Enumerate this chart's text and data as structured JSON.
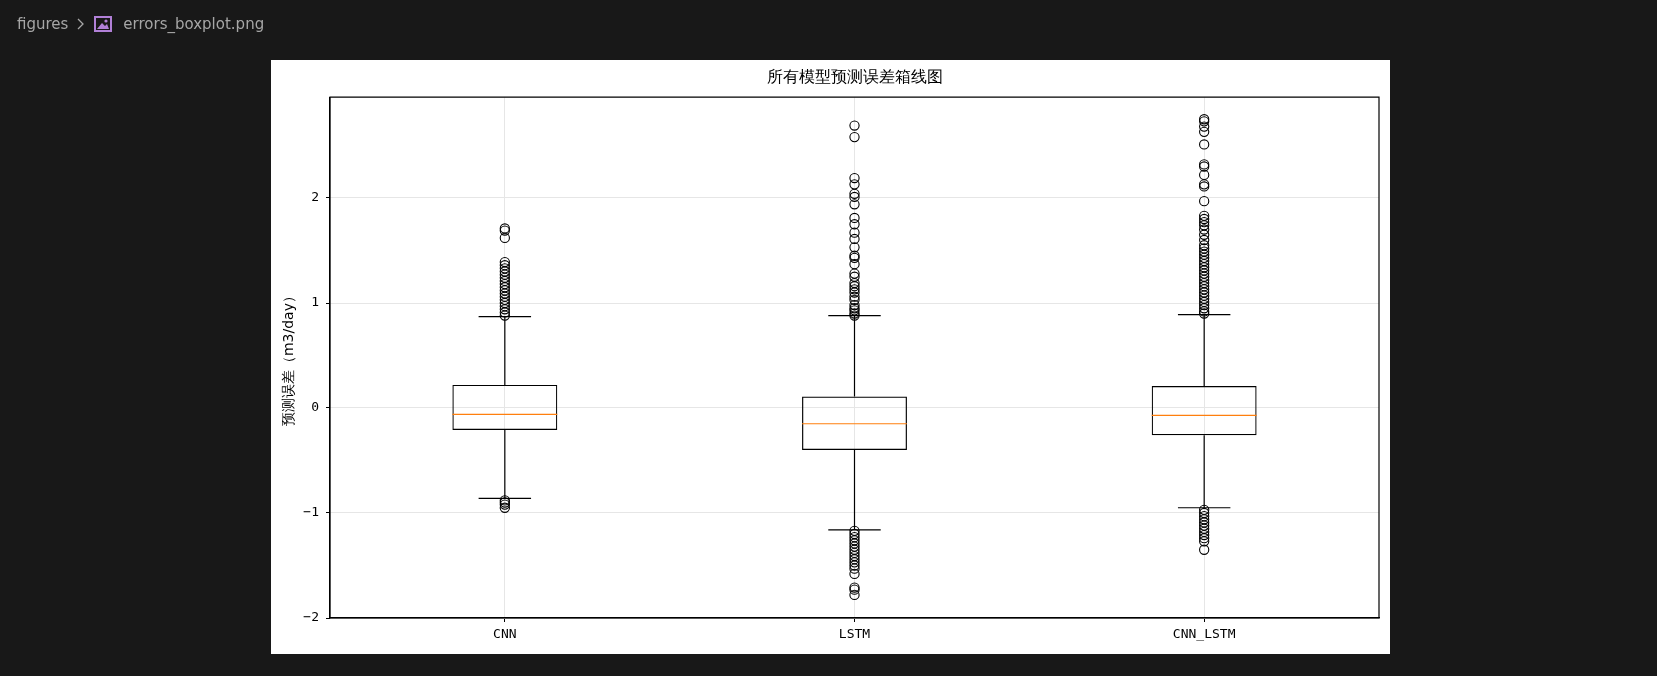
{
  "chart_data": {
    "type": "box",
    "title": "所有模型预测误差箱线图",
    "ylabel": "预测误差（m3/day）",
    "annotations": [
      "figures",
      "errors_boxplot.png"
    ],
    "categories": [
      "CNN",
      "LSTM",
      "CNN_LSTM"
    ],
    "color": "#000000",
    "boxes": [
      {
        "low": -0.86,
        "q1": -0.21,
        "median": -0.06,
        "q3": 0.22,
        "high": 0.87,
        "outliers": [
          1.71,
          1.69,
          1.62,
          1.39,
          1.36,
          1.33,
          1.3,
          1.27,
          1.24,
          1.21,
          1.18,
          1.15,
          1.12,
          1.09,
          1.06,
          1.03,
          1.0,
          0.97,
          0.94,
          0.91,
          0.88,
          -0.88,
          -0.9,
          -0.92,
          -0.95
        ]
      },
      {
        "low": -1.16,
        "q1": -0.4,
        "median": -0.15,
        "q3": 0.11,
        "high": 0.88,
        "outliers": [
          2.69,
          2.58,
          2.19,
          2.13,
          2.04,
          2.01,
          1.94,
          1.81,
          1.75,
          1.67,
          1.61,
          1.53,
          1.45,
          1.43,
          1.37,
          1.28,
          1.25,
          1.19,
          1.16,
          1.13,
          1.1,
          1.06,
          1.03,
          0.98,
          0.95,
          0.93,
          0.9,
          0.88,
          -1.17,
          -1.2,
          -1.23,
          -1.26,
          -1.29,
          -1.32,
          -1.35,
          -1.38,
          -1.41,
          -1.44,
          -1.47,
          -1.5,
          -1.53,
          -1.58,
          -1.71,
          -1.73,
          -1.78
        ]
      },
      {
        "low": -0.95,
        "q1": -0.26,
        "median": -0.07,
        "q3": 0.21,
        "high": 0.89,
        "outliers": [
          2.75,
          2.73,
          2.68,
          2.63,
          2.51,
          2.32,
          2.3,
          2.22,
          2.13,
          2.11,
          1.97,
          1.83,
          1.8,
          1.77,
          1.74,
          1.7,
          1.65,
          1.6,
          1.55,
          1.52,
          1.49,
          1.46,
          1.43,
          1.4,
          1.37,
          1.34,
          1.31,
          1.28,
          1.25,
          1.22,
          1.19,
          1.16,
          1.13,
          1.1,
          1.07,
          1.04,
          1.01,
          0.98,
          0.95,
          0.92,
          0.9,
          -0.97,
          -1.0,
          -1.03,
          -1.06,
          -1.09,
          -1.12,
          -1.15,
          -1.18,
          -1.21,
          -1.24,
          -1.27,
          -1.35
        ]
      }
    ],
    "ylim": [
      -2,
      2.96
    ],
    "yticks": [
      {
        "value": -2,
        "label": "−2"
      },
      {
        "value": -1,
        "label": "−1"
      },
      0,
      1,
      2
    ],
    "grid": true
  }
}
